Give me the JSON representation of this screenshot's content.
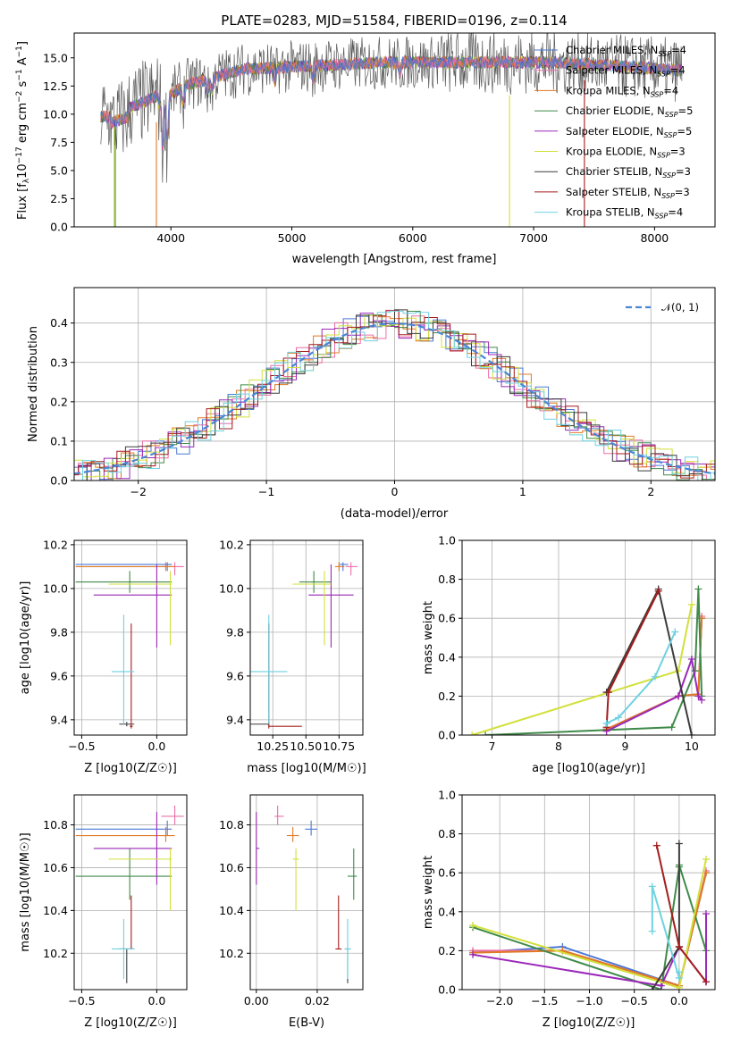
{
  "colors": [
    "#4a78d6",
    "#ec6fa8",
    "#e07a25",
    "#3f8a49",
    "#9a28b8",
    "#d2e03a",
    "#3c3c3c",
    "#a51c1c",
    "#6ed2e0"
  ],
  "panels": {
    "spectrum": {
      "title": "PLATE=0283, MJD=51584, FIBERID=0196, z=0.114",
      "xlabel": "wavelength [Angstrom, rest frame]",
      "ylabel": "Flux [f_λ10^−17 erg cm^−2 s^−1 A^−1]",
      "xticks": [
        "4000",
        "5000",
        "6000",
        "7000",
        "8000"
      ],
      "yticks": [
        "0.0",
        "2.5",
        "5.0",
        "7.5",
        "10.0",
        "12.5",
        "15.0"
      ]
    },
    "residual": {
      "xlabel": "(data-model)/error",
      "ylabel": "Normed distribution",
      "xticks": [
        "−2",
        "−1",
        "0",
        "1",
        "2"
      ],
      "yticks": [
        "0.0",
        "0.1",
        "0.2",
        "0.3",
        "0.4"
      ],
      "legend": "𝒩(0, 1)"
    },
    "z_age": {
      "xlabel": "Z [log10(Z/Z☉)]",
      "ylabel": "age  [log10(age/yr)]",
      "xticks": [
        "−0.5",
        "0.0"
      ],
      "yticks": [
        "9.4",
        "9.6",
        "9.8",
        "10.0",
        "10.2"
      ]
    },
    "mass_age": {
      "xlabel": "mass [log10(M/M☉)]",
      "xticks": [
        "10.25",
        "10.50",
        "10.75"
      ],
      "yticks": [
        "9.4",
        "9.6",
        "9.8",
        "10.0",
        "10.2"
      ]
    },
    "age_weight": {
      "xlabel": "age  [log10(age/yr)]",
      "ylabel": "mass weight",
      "xticks": [
        "7",
        "8",
        "9",
        "10"
      ],
      "yticks": [
        "0.0",
        "0.2",
        "0.4",
        "0.6",
        "0.8",
        "1.0"
      ]
    },
    "z_mass": {
      "xlabel": "Z [log10(Z/Z☉)]",
      "ylabel": "mass [log10(M/M☉)]",
      "xticks": [
        "−0.5",
        "0.0"
      ],
      "yticks": [
        "10.2",
        "10.4",
        "10.6",
        "10.8"
      ]
    },
    "ebv_mass": {
      "xlabel": "E(B-V)",
      "xticks": [
        "0.00",
        "0.02"
      ],
      "yticks": [
        "10.2",
        "10.4",
        "10.6",
        "10.8"
      ]
    },
    "z_weight": {
      "xlabel": "Z [log10(Z/Z☉)]",
      "ylabel": "mass weight",
      "xticks": [
        "−2.0",
        "−1.5",
        "−1.0",
        "−0.5",
        "0.0"
      ],
      "yticks": [
        "0.0",
        "0.2",
        "0.4",
        "0.6",
        "0.8",
        "1.0"
      ]
    }
  },
  "chart_data": {
    "type": "composite",
    "title": "PLATE=0283, MJD=51584, FIBERID=0196, z=0.114",
    "models": [
      {
        "name": "Chabrier MILES",
        "nssp": 4,
        "Z": [
          0.07,
          -0.54,
          0.1
        ],
        "age": [
          10.11,
          10.08,
          10.12
        ],
        "mass": [
          10.78,
          10.75,
          10.82
        ],
        "ebv": [
          0.018,
          0.016,
          0.02
        ],
        "age_w": [
          [
            8.72,
            0.03
          ],
          [
            9.8,
            0.2
          ],
          [
            10.1,
            0.21
          ],
          [
            10.15,
            0.6
          ]
        ],
        "Z_w": [
          [
            -2.3,
            0.19
          ],
          [
            -1.3,
            0.22
          ],
          [
            0.0,
            0.02
          ],
          [
            0.3,
            0.6
          ]
        ]
      },
      {
        "name": "Salpeter MILES",
        "nssp": 4,
        "Z": [
          0.12,
          0.03,
          0.18
        ],
        "age": [
          10.1,
          10.06,
          10.12
        ],
        "mass": [
          10.84,
          10.8,
          10.89
        ],
        "ebv": [
          0.007,
          0.006,
          0.009
        ],
        "age_w": [
          [
            8.72,
            0.03
          ],
          [
            9.8,
            0.2
          ],
          [
            10.1,
            0.21
          ],
          [
            10.15,
            0.61
          ]
        ],
        "Z_w": [
          [
            -2.3,
            0.2
          ],
          [
            -1.3,
            0.2
          ],
          [
            0.0,
            0.02
          ],
          [
            0.3,
            0.61
          ]
        ]
      },
      {
        "name": "Kroupa MILES",
        "nssp": 4,
        "Z": [
          0.06,
          -0.54,
          0.12
        ],
        "age": [
          10.1,
          10.08,
          10.12
        ],
        "mass": [
          10.75,
          10.72,
          10.79
        ],
        "ebv": [
          0.012,
          0.01,
          0.014
        ],
        "age_w": [
          [
            8.72,
            0.03
          ],
          [
            9.8,
            0.2
          ],
          [
            10.1,
            0.21
          ],
          [
            10.15,
            0.6
          ]
        ],
        "Z_w": [
          [
            -2.3,
            0.19
          ],
          [
            -1.3,
            0.2
          ],
          [
            0.0,
            0.02
          ],
          [
            0.3,
            0.6
          ]
        ]
      },
      {
        "name": "Chabrier ELODIE",
        "nssp": 5,
        "Z": [
          -0.18,
          -0.54,
          0.1
        ],
        "age": [
          10.03,
          9.98,
          10.08
        ],
        "mass": [
          10.56,
          10.45,
          10.69
        ],
        "ebv": [
          0.032,
          0.03,
          0.033
        ],
        "age_w": [
          [
            6.9,
            0.0
          ],
          [
            9.7,
            0.04
          ],
          [
            10.05,
            0.33
          ],
          [
            10.1,
            0.75
          ],
          [
            10.15,
            0.2
          ]
        ],
        "Z_w": [
          [
            -2.3,
            0.32
          ],
          [
            -0.2,
            0.0
          ],
          [
            0.0,
            0.64
          ],
          [
            0.0,
            0.63
          ],
          [
            0.3,
            0.2
          ]
        ]
      },
      {
        "name": "Salpeter ELODIE",
        "nssp": 5,
        "Z": [
          0.0,
          -0.42,
          0.1
        ],
        "age": [
          9.97,
          9.73,
          10.11
        ],
        "mass": [
          10.69,
          10.52,
          10.86
        ],
        "ebv": [
          0.0,
          0.0,
          0.001
        ],
        "age_w": [
          [
            8.72,
            0.02
          ],
          [
            9.8,
            0.2
          ],
          [
            10.0,
            0.39
          ],
          [
            10.1,
            0.2
          ],
          [
            10.15,
            0.18
          ]
        ],
        "Z_w": [
          [
            -2.3,
            0.18
          ],
          [
            -0.2,
            0.02
          ],
          [
            0.0,
            0.22
          ],
          [
            0.3,
            0.39
          ],
          [
            0.3,
            0.04
          ]
        ]
      },
      {
        "name": "Kroupa ELODIE",
        "nssp": 3,
        "Z": [
          0.09,
          -0.32,
          0.1
        ],
        "age": [
          10.02,
          9.74,
          10.08
        ],
        "mass": [
          10.64,
          10.4,
          10.69
        ],
        "ebv": [
          0.013,
          0.012,
          0.014
        ],
        "age_w": [
          [
            6.7,
            0.0
          ],
          [
            9.8,
            0.33
          ],
          [
            10.0,
            0.67
          ]
        ],
        "Z_w": [
          [
            -2.3,
            0.33
          ],
          [
            0.0,
            0.01
          ],
          [
            0.3,
            0.67
          ]
        ]
      },
      {
        "name": "Chabrier STELIB",
        "nssp": 3,
        "Z": [
          -0.2,
          -0.25,
          -0.15
        ],
        "age": [
          9.38,
          9.37,
          9.39
        ],
        "mass": [
          10.22,
          10.06,
          10.22
        ],
        "ebv": [
          0.03,
          0.029,
          0.031
        ],
        "age_w": [
          [
            8.72,
            0.22
          ],
          [
            9.5,
            0.75
          ],
          [
            10.0,
            0.0
          ]
        ],
        "Z_w": [
          [
            -0.3,
            0.0
          ],
          [
            0.0,
            0.22
          ],
          [
            0.0,
            0.75
          ]
        ]
      },
      {
        "name": "Salpeter STELIB",
        "nssp": 3,
        "Z": [
          -0.17,
          -0.18,
          -0.16
        ],
        "age": [
          9.37,
          9.36,
          9.84
        ],
        "mass": [
          10.22,
          10.22,
          10.47
        ],
        "ebv": [
          0.027,
          0.026,
          0.028
        ],
        "age_w": [
          [
            8.72,
            0.04
          ],
          [
            8.75,
            0.22
          ],
          [
            9.5,
            0.74
          ]
        ],
        "Z_w": [
          [
            -0.25,
            0.74
          ],
          [
            0.0,
            0.22
          ],
          [
            0.3,
            0.04
          ]
        ]
      },
      {
        "name": "Kroupa STELIB",
        "nssp": 4,
        "Z": [
          -0.22,
          -0.3,
          -0.15
        ],
        "age": [
          9.62,
          9.38,
          9.88
        ],
        "mass": [
          10.22,
          10.08,
          10.36
        ],
        "ebv": [
          0.03,
          0.029,
          0.031
        ],
        "age_w": [
          [
            8.72,
            0.06
          ],
          [
            8.9,
            0.09
          ],
          [
            9.45,
            0.3
          ],
          [
            9.75,
            0.53
          ]
        ],
        "Z_w": [
          [
            -0.3,
            0.3
          ],
          [
            -0.3,
            0.53
          ],
          [
            0.0,
            0.06
          ],
          [
            0.0,
            0.09
          ]
        ]
      }
    ],
    "spectrum": {
      "x_range": [
        3200,
        8500
      ],
      "y_range": [
        0,
        17.2
      ]
    },
    "residual_hist": {
      "x_range": [
        -2.5,
        2.5
      ],
      "y_range": [
        0,
        0.49
      ],
      "reference": "N(0,1)"
    }
  }
}
